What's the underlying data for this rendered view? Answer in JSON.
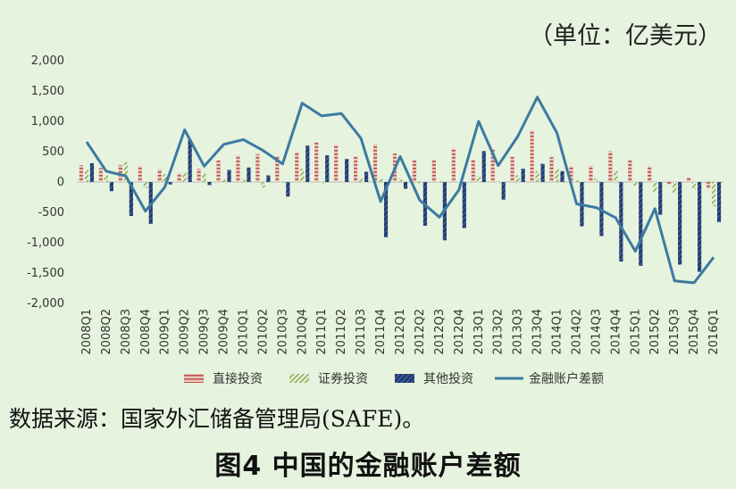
{
  "unit_label": "（单位：亿美元）",
  "source": "数据来源：国家外汇储备管理局(SAFE)。",
  "caption": "图4  中国的金融账户差额",
  "colors": {
    "fdi": "#c0504d",
    "portfolio": "#9bbb59",
    "other": "#1f3a6e",
    "balance": "#3c7aa0"
  },
  "chart_data": {
    "type": "bar",
    "ylim": [
      -2000,
      2000
    ],
    "yticks": [
      -2000,
      -1500,
      -1000,
      -500,
      0,
      500,
      1000,
      1500,
      2000
    ],
    "ytick_labels": [
      "-2,000",
      "-1,500",
      "-1,000",
      "-500",
      "0",
      "500",
      "1,000",
      "1,500",
      "2,000"
    ],
    "categories": [
      "2008Q1",
      "2008Q2",
      "2008Q3",
      "2008Q4",
      "2009Q1",
      "2009Q2",
      "2009Q3",
      "2009Q4",
      "2010Q1",
      "2010Q2",
      "2010Q3",
      "2010Q4",
      "2011Q1",
      "2011Q2",
      "2011Q3",
      "2011Q4",
      "2012Q1",
      "2012Q2",
      "2012Q3",
      "2012Q4",
      "2013Q1",
      "2013Q2",
      "2013Q3",
      "2013Q4",
      "2014Q1",
      "2014Q2",
      "2014Q3",
      "2014Q4",
      "2015Q1",
      "2015Q2",
      "2015Q3",
      "2015Q4",
      "2016Q1"
    ],
    "series": [
      {
        "name": "直接投资",
        "type": "bar",
        "values": [
          280,
          230,
          280,
          260,
          210,
          150,
          220,
          360,
          440,
          460,
          420,
          500,
          660,
          610,
          420,
          620,
          470,
          360,
          360,
          550,
          370,
          540,
          420,
          850,
          410,
          260,
          270,
          510,
          360,
          260,
          -40,
          80,
          -110
        ]
      },
      {
        "name": "证券投资",
        "type": "bar",
        "values": [
          200,
          120,
          330,
          -100,
          130,
          160,
          140,
          40,
          60,
          -90,
          -10,
          220,
          -20,
          10,
          60,
          60,
          60,
          -20,
          20,
          20,
          100,
          -20,
          110,
          180,
          220,
          40,
          60,
          190,
          -60,
          -160,
          -180,
          -120,
          -400
        ]
      },
      {
        "name": "其他投资",
        "type": "bar",
        "values": [
          310,
          -150,
          -560,
          -690,
          -40,
          700,
          -50,
          200,
          240,
          110,
          -240,
          600,
          440,
          380,
          170,
          -910,
          -110,
          -720,
          -960,
          -760,
          510,
          -290,
          220,
          300,
          180,
          -730,
          -890,
          -1310,
          -1380,
          -540,
          -1360,
          -1480,
          -660
        ]
      },
      {
        "name": "金融账户差额",
        "type": "line",
        "values": [
          660,
          180,
          100,
          -480,
          -80,
          860,
          260,
          620,
          700,
          520,
          300,
          1300,
          1090,
          1130,
          720,
          -320,
          420,
          -300,
          -580,
          -130,
          1000,
          270,
          750,
          1400,
          810,
          -360,
          -420,
          -590,
          -1140,
          -440,
          -1630,
          -1660,
          -1240
        ]
      }
    ]
  }
}
